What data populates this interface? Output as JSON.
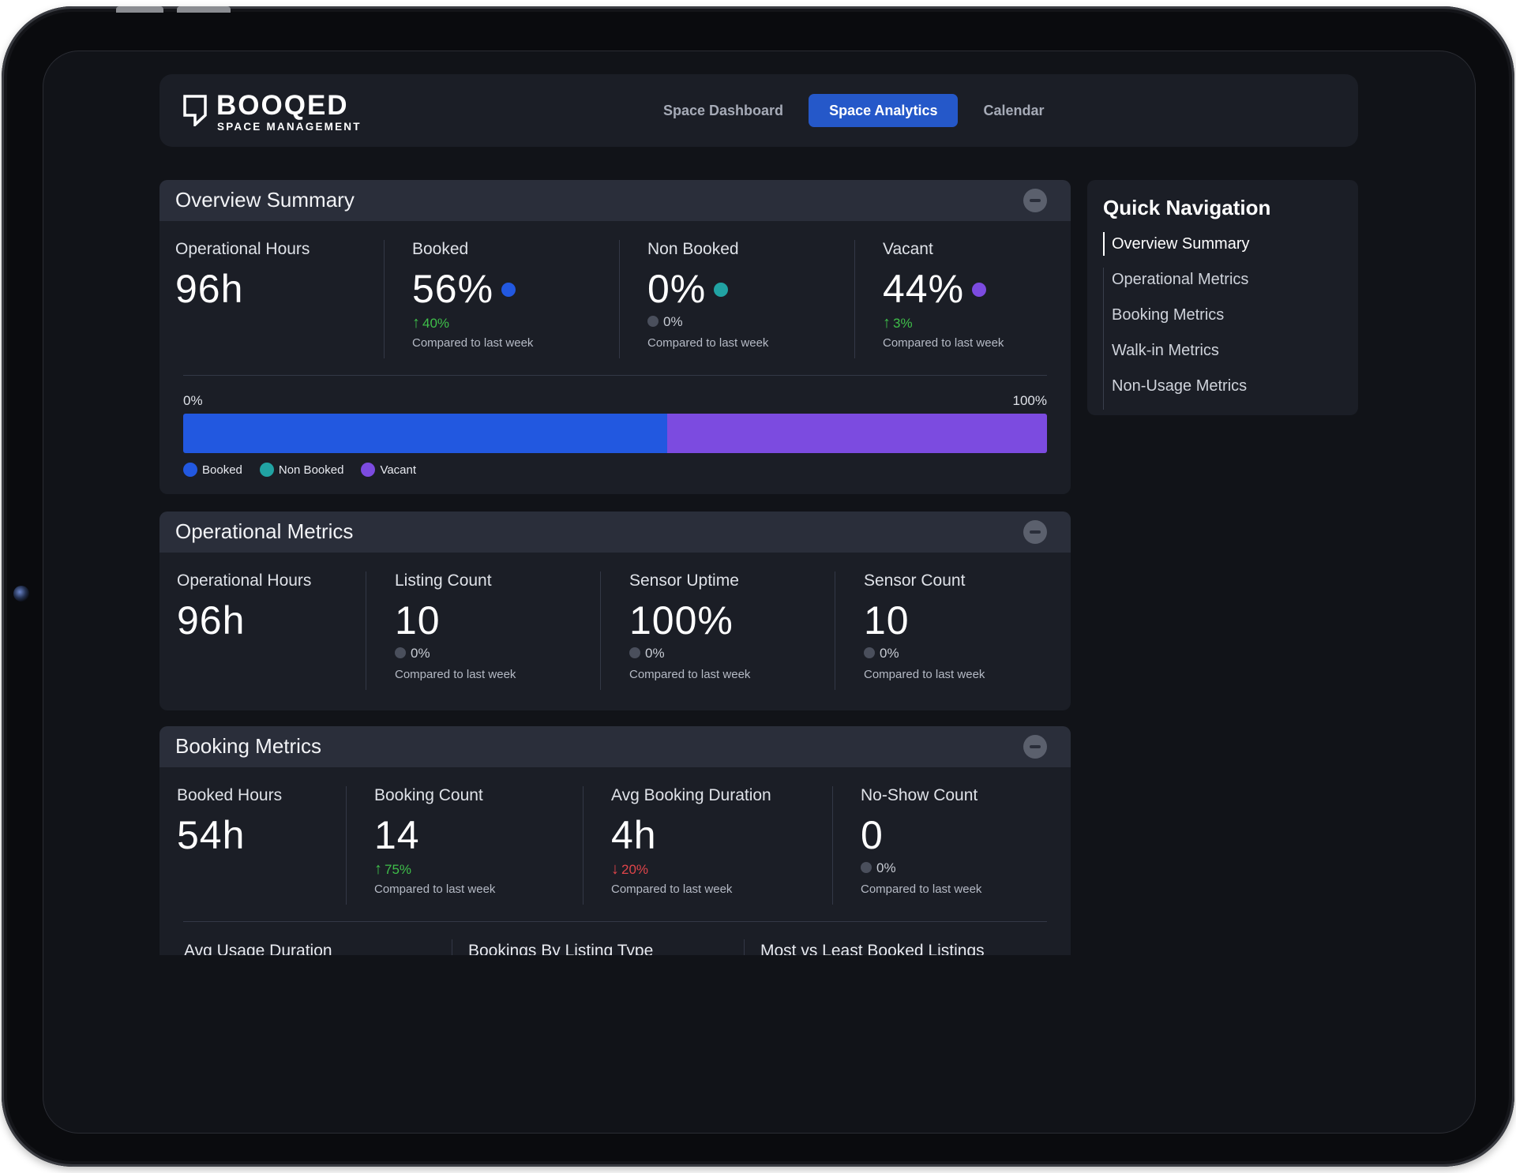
{
  "brand": {
    "name": "BOOQED",
    "tagline": "SPACE MANAGEMENT"
  },
  "nav": {
    "tabs": [
      {
        "label": "Space Dashboard",
        "active": false
      },
      {
        "label": "Space Analytics",
        "active": true
      },
      {
        "label": "Calendar",
        "active": false
      }
    ]
  },
  "colors": {
    "booked": "#2258e0",
    "non_booked": "#21a3a3",
    "vacant": "#7c4be0",
    "up": "#3fbf4a",
    "down": "#e0454a"
  },
  "overview": {
    "title": "Overview Summary",
    "metrics": [
      {
        "label": "Operational Hours",
        "value": "96h"
      },
      {
        "label": "Booked",
        "value": "56%",
        "change": "40%",
        "direction": "up",
        "compare": "Compared to last week"
      },
      {
        "label": "Non Booked",
        "value": "0%",
        "change": "0%",
        "direction": "flat",
        "compare": "Compared to last week"
      },
      {
        "label": "Vacant",
        "value": "44%",
        "change": "3%",
        "direction": "up",
        "compare": "Compared to last week"
      }
    ],
    "bar": {
      "min_label": "0%",
      "max_label": "100%",
      "segments": [
        {
          "name": "Booked",
          "percent": 56
        },
        {
          "name": "Non Booked",
          "percent": 0
        },
        {
          "name": "Vacant",
          "percent": 44
        }
      ]
    },
    "legend": [
      "Booked",
      "Non Booked",
      "Vacant"
    ]
  },
  "operational": {
    "title": "Operational Metrics",
    "metrics": [
      {
        "label": "Operational Hours",
        "value": "96h"
      },
      {
        "label": "Listing Count",
        "value": "10",
        "change": "0%",
        "direction": "flat",
        "compare": "Compared to last week"
      },
      {
        "label": "Sensor Uptime",
        "value": "100%",
        "change": "0%",
        "direction": "flat",
        "compare": "Compared to last week"
      },
      {
        "label": "Sensor Count",
        "value": "10",
        "change": "0%",
        "direction": "flat",
        "compare": "Compared to last week"
      }
    ]
  },
  "booking": {
    "title": "Booking Metrics",
    "metrics": [
      {
        "label": "Booked Hours",
        "value": "54h"
      },
      {
        "label": "Booking Count",
        "value": "14",
        "change": "75%",
        "direction": "up",
        "compare": "Compared to last week"
      },
      {
        "label": "Avg Booking Duration",
        "value": "4h",
        "change": "20%",
        "direction": "down",
        "compare": "Compared to last week"
      },
      {
        "label": "No-Show Count",
        "value": "0",
        "change": "0%",
        "direction": "flat",
        "compare": "Compared to last week"
      }
    ],
    "subsections": [
      "Avg Usage Duration",
      "Bookings By Listing Type",
      "Most vs Least Booked Listings"
    ]
  },
  "quick_nav": {
    "title": "Quick Navigation",
    "items": [
      {
        "label": "Overview Summary",
        "active": true
      },
      {
        "label": "Operational Metrics",
        "active": false
      },
      {
        "label": "Booking Metrics",
        "active": false
      },
      {
        "label": "Walk-in Metrics",
        "active": false
      },
      {
        "label": "Non-Usage Metrics",
        "active": false
      }
    ]
  }
}
